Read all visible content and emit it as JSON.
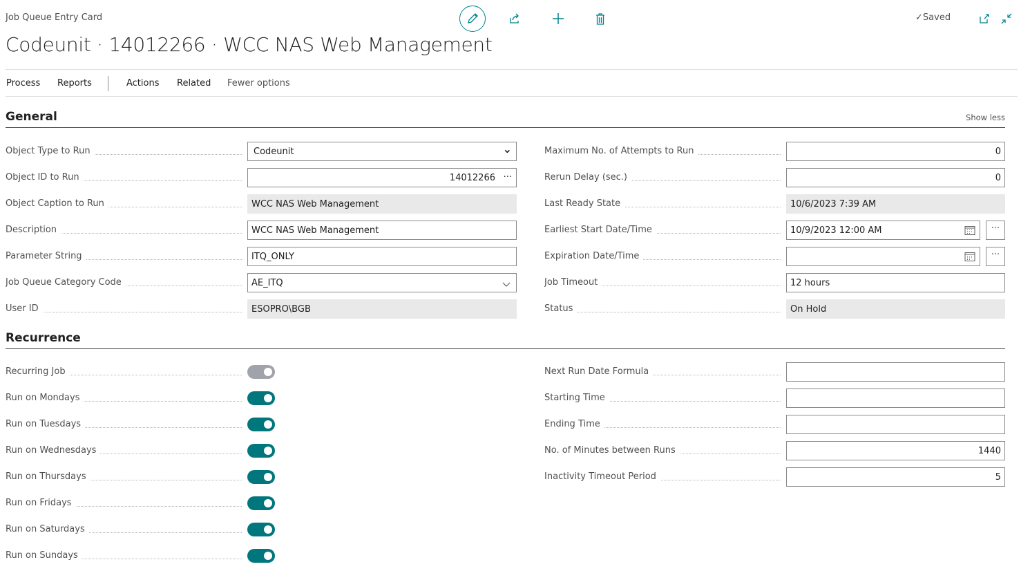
{
  "header": {
    "breadcrumb": "Job Queue Entry Card",
    "title": "Codeunit · 14012266 · WCC NAS Web Management",
    "saved": "Saved"
  },
  "icons": {
    "edit": "pencil-icon",
    "share": "share-icon",
    "new": "plus-icon",
    "delete": "trash-icon",
    "saved": "checkmark-icon",
    "open_new": "open-in-new-window-icon",
    "collapse": "collapse-icon"
  },
  "accent": "#00838f",
  "menu": {
    "items": [
      "Process",
      "Reports",
      "Actions",
      "Related"
    ],
    "fewer": "Fewer options"
  },
  "general": {
    "title": "General",
    "show_less": "Show less",
    "left": [
      {
        "label": "Object Type to Run",
        "value": "Codeunit",
        "kind": "select"
      },
      {
        "label": "Object ID to Run",
        "value": "14012266",
        "kind": "lookup"
      },
      {
        "label": "Object Caption to Run",
        "value": "WCC NAS Web Management",
        "kind": "readonly"
      },
      {
        "label": "Description",
        "value": "WCC NAS Web Management",
        "kind": "text"
      },
      {
        "label": "Parameter String",
        "value": "ITQ_ONLY",
        "kind": "text"
      },
      {
        "label": "Job Queue Category Code",
        "value": "AE_ITQ",
        "kind": "combo"
      },
      {
        "label": "User ID",
        "value": "ESOPRO\\BGB",
        "kind": "readonly"
      }
    ],
    "right": [
      {
        "label": "Maximum No. of Attempts to Run",
        "value": "0",
        "kind": "number"
      },
      {
        "label": "Rerun Delay (sec.)",
        "value": "0",
        "kind": "number"
      },
      {
        "label": "Last Ready State",
        "value": "10/6/2023 7:39 AM",
        "kind": "readonly"
      },
      {
        "label": "Earliest Start Date/Time",
        "value": "10/9/2023 12:00 AM",
        "kind": "datetime"
      },
      {
        "label": "Expiration Date/Time",
        "value": "",
        "kind": "datetime"
      },
      {
        "label": "Job Timeout",
        "value": "12 hours",
        "kind": "text"
      },
      {
        "label": "Status",
        "value": "On Hold",
        "kind": "readonly"
      }
    ]
  },
  "recurrence": {
    "title": "Recurrence",
    "left": [
      {
        "label": "Recurring Job",
        "on": true,
        "disabled": true
      },
      {
        "label": "Run on Mondays",
        "on": true
      },
      {
        "label": "Run on Tuesdays",
        "on": true
      },
      {
        "label": "Run on Wednesdays",
        "on": true
      },
      {
        "label": "Run on Thursdays",
        "on": true
      },
      {
        "label": "Run on Fridays",
        "on": true
      },
      {
        "label": "Run on Saturdays",
        "on": true
      },
      {
        "label": "Run on Sundays",
        "on": true
      }
    ],
    "right": [
      {
        "label": "Next Run Date Formula",
        "value": "",
        "kind": "text"
      },
      {
        "label": "Starting Time",
        "value": "",
        "kind": "text"
      },
      {
        "label": "Ending Time",
        "value": "",
        "kind": "text"
      },
      {
        "label": "No. of Minutes between Runs",
        "value": "1440",
        "kind": "number"
      },
      {
        "label": "Inactivity Timeout Period",
        "value": "5",
        "kind": "number"
      }
    ]
  }
}
